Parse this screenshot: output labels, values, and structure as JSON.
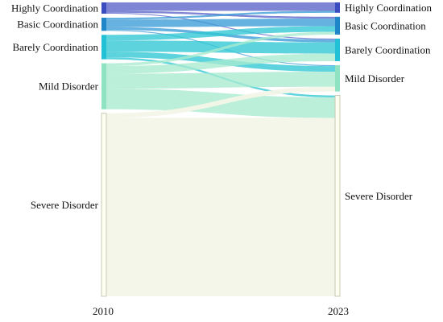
{
  "chart_data": {
    "type": "sankey",
    "title": "",
    "columns": [
      "2010",
      "2023"
    ],
    "nodes": [
      {
        "id": "hc",
        "label": "Highly Coordination",
        "color": "#3b4cc0"
      },
      {
        "id": "bc",
        "label": "Basic Coordination",
        "color": "#1f86c8"
      },
      {
        "id": "br",
        "label": "Barely Coordination",
        "color": "#22c1d6"
      },
      {
        "id": "md",
        "label": "Mild Disorder",
        "color": "#8fe3c3"
      },
      {
        "id": "sd",
        "label": "Severe Disorder",
        "color": "#fdfdf0"
      }
    ],
    "link_colors": {
      "hc": "#5a63c8",
      "bc": "#3a9bd6",
      "br": "#2ec6d4",
      "md": "#a8ead0",
      "sd": "#f3f6e8"
    },
    "flows": [
      {
        "source": "hc",
        "target": "hc",
        "value": 9
      },
      {
        "source": "hc",
        "target": "bc",
        "value": 2
      },
      {
        "source": "hc",
        "target": "br",
        "value": 1
      },
      {
        "source": "bc",
        "target": "hc",
        "value": 2
      },
      {
        "source": "bc",
        "target": "bc",
        "value": 8
      },
      {
        "source": "bc",
        "target": "br",
        "value": 3
      },
      {
        "source": "bc",
        "target": "md",
        "value": 1
      },
      {
        "source": "br",
        "target": "bc",
        "value": 6
      },
      {
        "source": "br",
        "target": "br",
        "value": 12
      },
      {
        "source": "br",
        "target": "md",
        "value": 6
      },
      {
        "source": "br",
        "target": "sd",
        "value": 2
      },
      {
        "source": "md",
        "target": "bc",
        "value": 3
      },
      {
        "source": "md",
        "target": "br",
        "value": 8
      },
      {
        "source": "md",
        "target": "md",
        "value": 16
      },
      {
        "source": "md",
        "target": "sd",
        "value": 22
      },
      {
        "source": "sd",
        "target": "md",
        "value": 5
      },
      {
        "source": "sd",
        "target": "sd",
        "value": 190
      }
    ]
  }
}
